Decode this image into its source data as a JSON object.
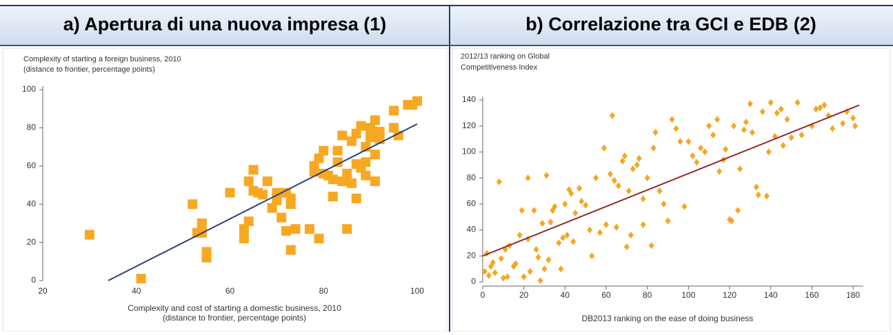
{
  "chart_data": [
    {
      "type": "scatter",
      "title": "a)  Apertura di una nuova impresa (1)",
      "ylabel": [
        "Complexity of starting a foreign business, 2010",
        "(distance to frontier, percentage points)"
      ],
      "xlabel": [
        "Complexity and cost of starting a domestic business, 2010",
        "(distance to frontier, percentage points)"
      ],
      "marker": "square",
      "color": "#f7a823",
      "x": [
        30,
        41,
        52,
        53,
        54,
        54,
        55,
        55,
        60,
        63,
        63,
        64,
        64,
        65,
        65,
        66,
        67,
        68,
        69,
        70,
        70,
        71,
        72,
        72,
        73,
        73,
        74,
        73,
        77,
        78,
        78,
        79,
        80,
        79,
        81,
        82,
        82,
        83,
        83,
        84,
        85,
        85,
        86,
        86,
        87,
        87,
        88,
        88,
        89,
        89,
        90,
        90,
        91,
        91,
        91,
        92,
        92,
        95,
        95,
        96,
        98,
        100,
        99,
        84,
        80,
        87,
        89
      ],
      "values": [
        24,
        1,
        40,
        25,
        30,
        25,
        12,
        15,
        46,
        27,
        22,
        31,
        52,
        58,
        47,
        46,
        45,
        52,
        38,
        46,
        42,
        33,
        46,
        26,
        40,
        16,
        27,
        43,
        27,
        57,
        60,
        64,
        68,
        22,
        55,
        53,
        44,
        68,
        62,
        76,
        27,
        56,
        51,
        73,
        77,
        43,
        81,
        59,
        70,
        62,
        80,
        75,
        84,
        52,
        66,
        78,
        74,
        89,
        80,
        76,
        92,
        94,
        92,
        52,
        56,
        61,
        55
      ],
      "fit_line": {
        "x": [
          34,
          100
        ],
        "values": [
          0,
          82
        ],
        "color": "#2e3f7a"
      },
      "xlim": [
        20,
        100
      ],
      "ylim": [
        0,
        100
      ],
      "xticks": [
        20,
        40,
        60,
        80,
        100
      ],
      "yticks": [
        0,
        20,
        40,
        60,
        80,
        100
      ]
    },
    {
      "type": "scatter",
      "title": "b)  Correlazione tra GCI e EDB (2)",
      "ylabel": [
        "2012/13 ranking on Global",
        "Competitiveness Index"
      ],
      "xlabel": [
        "DB2013 ranking on the ease of doing business"
      ],
      "marker": "diamond",
      "color": "#f5a623",
      "x": [
        1,
        2,
        3,
        4,
        5,
        6,
        8,
        9,
        10,
        11,
        12,
        13,
        15,
        16,
        18,
        19,
        20,
        22,
        22,
        23,
        25,
        26,
        27,
        28,
        29,
        30,
        31,
        32,
        33,
        34,
        35,
        37,
        38,
        39,
        40,
        41,
        42,
        43,
        44,
        45,
        47,
        48,
        50,
        52,
        53,
        55,
        57,
        59,
        60,
        62,
        63,
        64,
        65,
        66,
        68,
        69,
        70,
        71,
        72,
        73,
        75,
        76,
        78,
        78,
        80,
        82,
        83,
        84,
        86,
        88,
        90,
        92,
        94,
        96,
        98,
        100,
        102,
        104,
        106,
        108,
        110,
        112,
        114,
        115,
        117,
        118,
        120,
        121,
        122,
        124,
        125,
        127,
        128,
        130,
        131,
        133,
        134,
        136,
        138,
        139,
        140,
        142,
        143,
        145,
        146,
        148,
        150,
        153,
        155,
        160,
        162,
        164,
        166,
        168,
        170,
        175,
        177,
        180,
        181
      ],
      "values": [
        8,
        22,
        5,
        12,
        15,
        7,
        77,
        18,
        3,
        25,
        4,
        28,
        12,
        14,
        36,
        55,
        4,
        33,
        80,
        8,
        55,
        25,
        19,
        1,
        45,
        10,
        82,
        17,
        46,
        55,
        58,
        30,
        10,
        34,
        60,
        36,
        71,
        68,
        31,
        53,
        72,
        62,
        59,
        40,
        20,
        80,
        38,
        103,
        44,
        83,
        128,
        78,
        42,
        74,
        93,
        97,
        27,
        70,
        36,
        87,
        90,
        95,
        44,
        64,
        80,
        28,
        103,
        115,
        70,
        60,
        47,
        125,
        118,
        108,
        58,
        108,
        97,
        92,
        103,
        100,
        120,
        113,
        125,
        85,
        94,
        102,
        48,
        47,
        120,
        55,
        87,
        117,
        123,
        137,
        115,
        73,
        67,
        131,
        66,
        100,
        138,
        112,
        130,
        133,
        105,
        125,
        111,
        138,
        113,
        120,
        133,
        134,
        136,
        128,
        118,
        122,
        131,
        126,
        120
      ],
      "fit_line": {
        "x": [
          0,
          183
        ],
        "values": [
          20,
          136
        ],
        "color": "#8b2a2a"
      },
      "xlim": [
        0,
        185
      ],
      "ylim": [
        0,
        140
      ],
      "xticks": [
        0,
        20,
        40,
        60,
        80,
        100,
        120,
        140,
        160,
        180
      ],
      "yticks": [
        0,
        20,
        40,
        60,
        80,
        100,
        120,
        140
      ]
    }
  ]
}
